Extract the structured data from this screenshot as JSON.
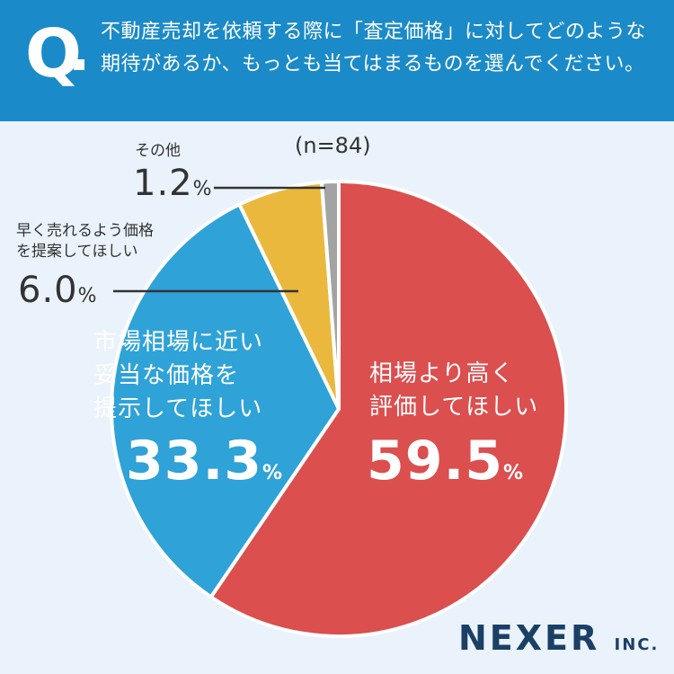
{
  "question": {
    "mark": "Q",
    "text": "不動産売却を依頼する際に「査定価格」に対してどのような期待があるか、もっとも当てはまるものを選んでください。"
  },
  "n_label": "(n=84)",
  "logo": {
    "main": "NEXER",
    "suffix": "INC."
  },
  "colors": {
    "header": "#1b8ac8",
    "red": "#db4f4f",
    "blue": "#2fa2d8",
    "yellow": "#ebb83e",
    "gray": "#a3a3a3",
    "background": "#eaf3fb"
  },
  "chart_data": {
    "type": "pie",
    "start": "12 o'clock, clockwise",
    "slices": [
      {
        "label_lines": [
          "相場より高く",
          "評価してほしい"
        ],
        "value": 59.5,
        "value_text": "59.5",
        "unit": "%",
        "color": "#db4f4f"
      },
      {
        "label_lines": [
          "市場相場に近い",
          "妥当な価格を",
          "提示してほしい"
        ],
        "value": 33.3,
        "value_text": "33.3",
        "unit": "%",
        "color": "#2fa2d8"
      },
      {
        "label_lines": [
          "早く売れるよう価格",
          "を提案してほしい"
        ],
        "value": 6.0,
        "value_text": "6.0",
        "unit": "%",
        "color": "#ebb83e"
      },
      {
        "label_lines": [
          "その他"
        ],
        "value": 1.2,
        "value_text": "1.2",
        "unit": "%",
        "color": "#a3a3a3"
      }
    ]
  }
}
